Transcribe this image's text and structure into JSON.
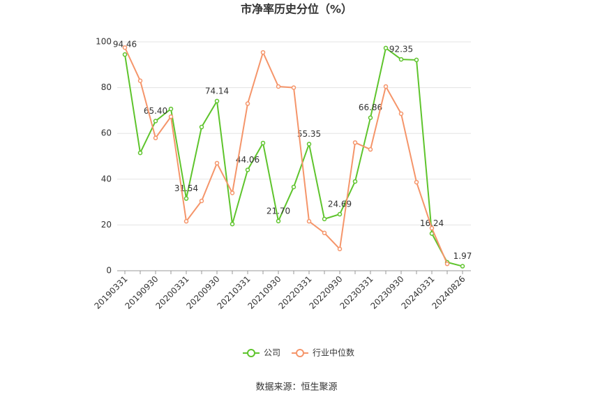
{
  "chart_data": {
    "type": "line",
    "title": "市净率历史分位（%）",
    "source": "数据来源：恒生聚源",
    "categories": [
      "20190331",
      null,
      "20190930",
      null,
      "20200331",
      null,
      "20200930",
      null,
      "20210331",
      null,
      "20210930",
      null,
      "20220331",
      null,
      "20220930",
      null,
      "20230331",
      null,
      "20230930",
      null,
      "20240331",
      null,
      "20240826"
    ],
    "series": [
      {
        "name": "公司",
        "color": "#5ec42c",
        "values": [
          94.46,
          51.5,
          65.4,
          70.7,
          31.54,
          62.8,
          74.14,
          20.4,
          44.06,
          55.8,
          21.7,
          36.6,
          55.35,
          22.6,
          24.69,
          39,
          66.86,
          97.3,
          92.35,
          92.1,
          16.24,
          3.7,
          1.97
        ],
        "value_labels": [
          "94.46",
          null,
          "65.40",
          null,
          "31.54",
          null,
          "74.14",
          null,
          "44.06",
          null,
          "21.70",
          null,
          "55.35",
          null,
          "24.69",
          null,
          "66.86",
          null,
          "92.35",
          null,
          "16.24",
          null,
          "1.97"
        ]
      },
      {
        "name": "行业中位数",
        "color": "#f5956a",
        "values": [
          97.5,
          83,
          58,
          67.3,
          21.6,
          30.5,
          47,
          34,
          73,
          95.4,
          80.5,
          80,
          21.6,
          16.5,
          9.5,
          56,
          53,
          80.5,
          68.6,
          38.7,
          18.6,
          3,
          null
        ]
      }
    ],
    "ylim": [
      0,
      100
    ],
    "yticks": [
      0,
      20,
      40,
      60,
      80,
      100
    ],
    "grid": true
  }
}
